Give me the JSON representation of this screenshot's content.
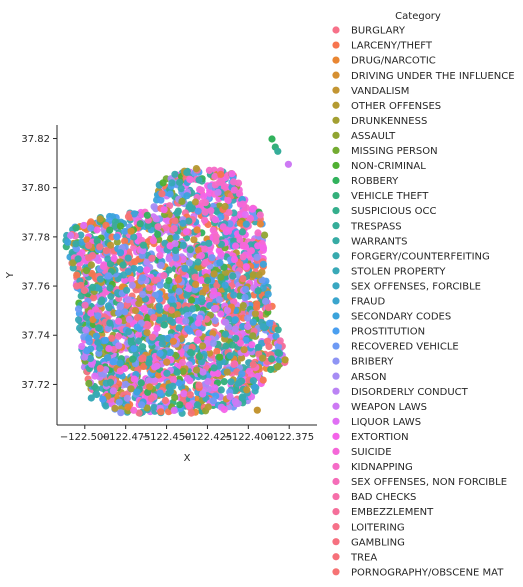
{
  "chart_data": {
    "type": "scatter",
    "title": "",
    "xlabel": "X",
    "ylabel": "Y",
    "xlim": [
      -122.517,
      -122.358
    ],
    "ylim": [
      37.7035,
      37.8255
    ],
    "x_ticks": [
      -122.5,
      -122.475,
      -122.45,
      -122.425,
      -122.4,
      -122.375
    ],
    "x_tick_labels": [
      "−122.500",
      "−122.475",
      "−122.450",
      "−122.425",
      "−122.400",
      "−122.375"
    ],
    "y_ticks": [
      37.72,
      37.74,
      37.76,
      37.78,
      37.8,
      37.82
    ],
    "y_tick_labels": [
      "37.72",
      "37.74",
      "37.76",
      "37.78",
      "37.80",
      "37.82"
    ],
    "grid": false,
    "legend_title": "Category",
    "legend_position": "right, outside",
    "categories": [
      "BURGLARY",
      "LARCENY/THEFT",
      "DRUG/NARCOTIC",
      "DRIVING UNDER THE INFLUENCE",
      "VANDALISM",
      "OTHER OFFENSES",
      "DRUNKENNESS",
      "ASSAULT",
      "MISSING PERSON",
      "NON-CRIMINAL",
      "ROBBERY",
      "VEHICLE THEFT",
      "SUSPICIOUS OCC",
      "TRESPASS",
      "WARRANTS",
      "FORGERY/COUNTERFEITING",
      "STOLEN PROPERTY",
      "SEX OFFENSES, FORCIBLE",
      "FRAUD",
      "SECONDARY CODES",
      "PROSTITUTION",
      "RECOVERED VEHICLE",
      "BRIBERY",
      "ARSON",
      "DISORDERLY CONDUCT",
      "WEAPON LAWS",
      "LIQUOR LAWS",
      "EXTORTION",
      "SUICIDE",
      "KIDNAPPING",
      "SEX OFFENSES, NON FORCIBLE",
      "BAD CHECKS",
      "EMBEZZLEMENT",
      "LOITERING",
      "GAMBLING",
      "TREA",
      "PORNOGRAPHY/OBSCENE MAT"
    ],
    "colors": [
      "#f77189",
      "#f7754f",
      "#e98632",
      "#d58f31",
      "#c39532",
      "#b49a31",
      "#a39f31",
      "#90a431",
      "#73ab31",
      "#4fb031",
      "#31b25c",
      "#33b07a",
      "#34ae8c",
      "#35ad99",
      "#36aba4",
      "#37aaae",
      "#38a9b7",
      "#39a7c1",
      "#3aa5cd",
      "#3ba3db",
      "#4a9ff0",
      "#6e9af4",
      "#8e94f4",
      "#a68cf4",
      "#bb83f4",
      "#cd79f4",
      "#e06ff4",
      "#f463e9",
      "#f567d8",
      "#f56bc7",
      "#f56db8",
      "#f66ea9",
      "#f56f9a",
      "#f67189",
      "#f67080",
      "#f6707a",
      "#f67374"
    ],
    "outliers": [
      {
        "x": -122.3855,
        "y": 37.8198
      },
      {
        "x": -122.3835,
        "y": 37.8165
      },
      {
        "x": -122.382,
        "y": 37.8148
      },
      {
        "x": -122.3755,
        "y": 37.8095
      },
      {
        "x": -122.4905,
        "y": 37.7265
      },
      {
        "x": -122.496,
        "y": 37.7145
      },
      {
        "x": -122.489,
        "y": 37.714
      },
      {
        "x": -122.478,
        "y": 37.7085
      },
      {
        "x": -122.3945,
        "y": 37.7095
      },
      {
        "x": -122.3775,
        "y": 37.73
      }
    ]
  }
}
